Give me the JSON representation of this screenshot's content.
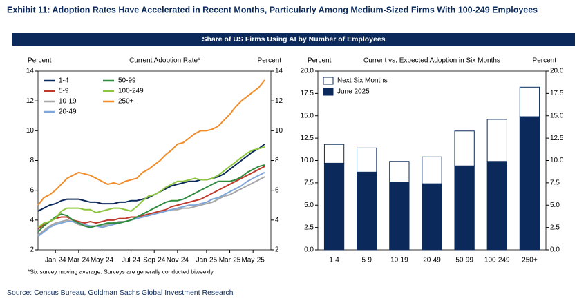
{
  "header": {
    "title": "Exhibit 11: Adoption Rates Have Accelerated in Recent Months, Particularly Among Medium-Sized Firms With 100-249 Employees"
  },
  "banner": "Share of US Firms Using AI by Number of Employees",
  "source": "Source: Census Bureau, Goldman Sachs Global Investment Research",
  "chart_data": [
    {
      "type": "line",
      "title": "Current Adoption Rate*",
      "y_label": "Percent",
      "y2_label": "Percent",
      "note": "*Six survey moving average. Surveys are generally conducted biweekly.",
      "categories": [
        null,
        null,
        null,
        "Jan-24",
        null,
        null,
        null,
        "Mar-24",
        null,
        null,
        null,
        "May-24",
        null,
        null,
        null,
        null,
        "Jul-24",
        null,
        null,
        null,
        "Sep-24",
        null,
        null,
        null,
        "Nov-24",
        null,
        null,
        null,
        null,
        "Jan-25",
        null,
        null,
        null,
        "Mar-25",
        null,
        null,
        null,
        "May-25",
        null,
        null
      ],
      "ylim": [
        2,
        14
      ],
      "yticks": [
        2,
        4,
        6,
        8,
        10,
        12,
        14
      ],
      "series": [
        {
          "name": "1-4",
          "color": "#0b2a5b",
          "values": [
            4.6,
            4.8,
            5.0,
            5.1,
            5.3,
            5.4,
            5.4,
            5.4,
            5.3,
            5.2,
            5.2,
            5.1,
            5.1,
            5.1,
            5.2,
            5.2,
            5.3,
            5.3,
            5.4,
            5.5,
            5.7,
            5.9,
            6.1,
            6.3,
            6.4,
            6.5,
            6.6,
            6.6,
            6.7,
            6.7,
            6.8,
            6.9,
            7.1,
            7.4,
            7.7,
            8.0,
            8.3,
            8.6,
            8.8,
            9.1
          ]
        },
        {
          "name": "5-9",
          "color": "#c0392b",
          "values": [
            3.4,
            3.7,
            3.9,
            4.1,
            4.2,
            4.2,
            4.0,
            3.9,
            3.8,
            3.9,
            3.8,
            3.9,
            4.0,
            4.0,
            4.1,
            4.1,
            4.2,
            4.2,
            4.3,
            4.4,
            4.5,
            4.6,
            4.7,
            4.9,
            5.0,
            5.1,
            5.2,
            5.3,
            5.4,
            5.6,
            5.8,
            6.0,
            6.2,
            6.4,
            6.6,
            6.8,
            7.0,
            7.2,
            7.4,
            7.6
          ]
        },
        {
          "name": "10-19",
          "color": "#a6a6a6",
          "values": [
            3.0,
            3.3,
            3.6,
            3.8,
            3.9,
            4.0,
            3.9,
            3.7,
            3.6,
            3.6,
            3.6,
            3.6,
            3.7,
            3.8,
            3.9,
            3.9,
            4.0,
            4.1,
            4.2,
            4.3,
            4.4,
            4.5,
            4.6,
            4.7,
            4.7,
            4.8,
            4.8,
            4.9,
            5.0,
            5.1,
            5.2,
            5.4,
            5.6,
            5.7,
            5.9,
            6.1,
            6.3,
            6.5,
            6.7,
            6.9
          ]
        },
        {
          "name": "20-49",
          "color": "#7ea6d8",
          "values": [
            2.9,
            3.2,
            3.5,
            3.7,
            3.8,
            3.9,
            3.9,
            3.8,
            3.7,
            3.6,
            3.6,
            3.5,
            3.6,
            3.7,
            3.8,
            3.9,
            4.0,
            4.1,
            4.2,
            4.3,
            4.4,
            4.5,
            4.6,
            4.7,
            4.8,
            4.9,
            5.0,
            5.0,
            5.1,
            5.2,
            5.4,
            5.5,
            5.7,
            5.9,
            6.1,
            6.3,
            6.6,
            6.8,
            7.0,
            7.2
          ]
        },
        {
          "name": "50-99",
          "color": "#2e8b3e",
          "values": [
            3.2,
            3.6,
            3.9,
            4.2,
            4.4,
            4.3,
            4.0,
            3.8,
            3.6,
            3.5,
            3.6,
            3.7,
            3.8,
            3.8,
            3.8,
            3.9,
            4.0,
            4.2,
            4.4,
            4.6,
            4.8,
            5.0,
            5.2,
            5.3,
            5.3,
            5.4,
            5.6,
            5.8,
            6.0,
            6.2,
            6.4,
            6.6,
            6.6,
            6.6,
            6.7,
            6.9,
            7.2,
            7.4,
            7.6,
            7.7
          ]
        },
        {
          "name": "100-249",
          "color": "#8cc63f",
          "values": [
            3.5,
            3.8,
            3.9,
            4.1,
            4.6,
            4.8,
            4.8,
            4.8,
            4.7,
            4.7,
            4.5,
            4.6,
            4.7,
            4.8,
            4.8,
            4.7,
            4.6,
            4.9,
            5.3,
            5.6,
            5.7,
            5.9,
            6.2,
            6.4,
            6.6,
            6.6,
            6.7,
            6.8,
            6.7,
            6.7,
            6.8,
            7.0,
            7.3,
            7.6,
            7.9,
            8.2,
            8.5,
            8.7,
            8.8,
            8.9
          ]
        },
        {
          "name": "250+",
          "color": "#f28c28",
          "values": [
            5.0,
            5.5,
            5.7,
            6.0,
            6.4,
            6.8,
            7.0,
            7.2,
            7.1,
            7.0,
            6.8,
            6.6,
            6.4,
            6.5,
            6.4,
            6.6,
            6.7,
            6.8,
            7.2,
            7.4,
            7.7,
            8.0,
            8.4,
            8.7,
            9.1,
            9.2,
            9.5,
            9.8,
            10.0,
            10.0,
            10.1,
            10.3,
            10.7,
            11.1,
            11.6,
            12.0,
            12.3,
            12.6,
            12.9,
            13.4
          ]
        }
      ]
    },
    {
      "type": "bar",
      "stacked": true,
      "title": "Current vs. Expected Adoption in Six Months",
      "y_label": "Percent",
      "y2_label": "Percent",
      "categories": [
        "1-4",
        "5-9",
        "10-19",
        "20-49",
        "50-99",
        "100-249",
        "250+"
      ],
      "ylim": [
        0,
        20
      ],
      "yticks": [
        {
          "value": 0,
          "label": "0.0"
        },
        {
          "value": 2.5,
          "label": "2.5"
        },
        {
          "value": 5,
          "label": "5.0"
        },
        {
          "value": 7.5,
          "label": "7.5"
        },
        {
          "value": 10,
          "label": "10.0"
        },
        {
          "value": 12.5,
          "label": "12.5"
        },
        {
          "value": 15,
          "label": "15.0"
        },
        {
          "value": 17.5,
          "label": "17.5"
        },
        {
          "value": 20,
          "label": "20.0"
        }
      ],
      "series": [
        {
          "name": "June 2025",
          "color": "#0b2a5b",
          "values": [
            9.7,
            8.7,
            7.6,
            7.4,
            9.4,
            9.9,
            14.9
          ]
        },
        {
          "name": "Next Six Months",
          "color": "#ffffff",
          "values": [
            2.1,
            2.7,
            2.3,
            3.0,
            3.9,
            4.7,
            3.3
          ]
        }
      ]
    }
  ]
}
